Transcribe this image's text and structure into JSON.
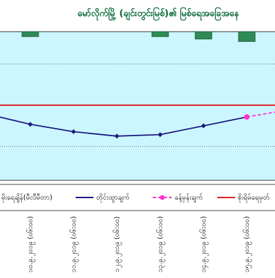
{
  "chart_data": {
    "type": "line",
    "title": "မော်လိုက်မြို့ (ချင်းတွင်းမြစ်)၏ မြစ်ရေအခြေအနေ",
    "categories": [
      "၉.၉.၂၀၁၉ (၀၆:၀၀)",
      "၁၀.၉.၂၀၁၉ (၀၆:၀၀)",
      "၁၁.၉.၂၀၁၉ (၀၆:၀၀)",
      "၁၂.၉.၂၀၁၉ (၀၆:၀၀)",
      "၁၃.၉.၂၀၁၉ (၀၆:၀၀)",
      "၁၄.၉.၂၀၁၉ (၀၆:၀၀)",
      "၁၅.၉.၂၀၁၉ (၀၆:၀၀)",
      null
    ],
    "series": [
      {
        "name": "မိုးရေချိန်(မီလီမီတာ)",
        "color": "#2e8b57",
        "axis": "y2",
        "values": [
          null,
          2,
          null,
          null,
          2,
          3,
          4,
          null
        ]
      },
      {
        "name": "တိုင်းထွာချက်",
        "color": "#1a1a80",
        "values": [
          45,
          38,
          33,
          30,
          31,
          37,
          43,
          null
        ]
      },
      {
        "name": "ခန့်မှန်းချက်",
        "color": "#ff33cc",
        "values": [
          null,
          null,
          null,
          null,
          null,
          null,
          43,
          48
        ]
      }
    ],
    "danger": {
      "name": "စိုးရိမ်ရေမှတ်",
      "color": "#e02020",
      "value": 51
    },
    "ylim": [
      0,
      100
    ],
    "yticks": [
      23,
      51,
      79
    ],
    "y2lim": [
      0,
      60
    ],
    "grid": true
  }
}
